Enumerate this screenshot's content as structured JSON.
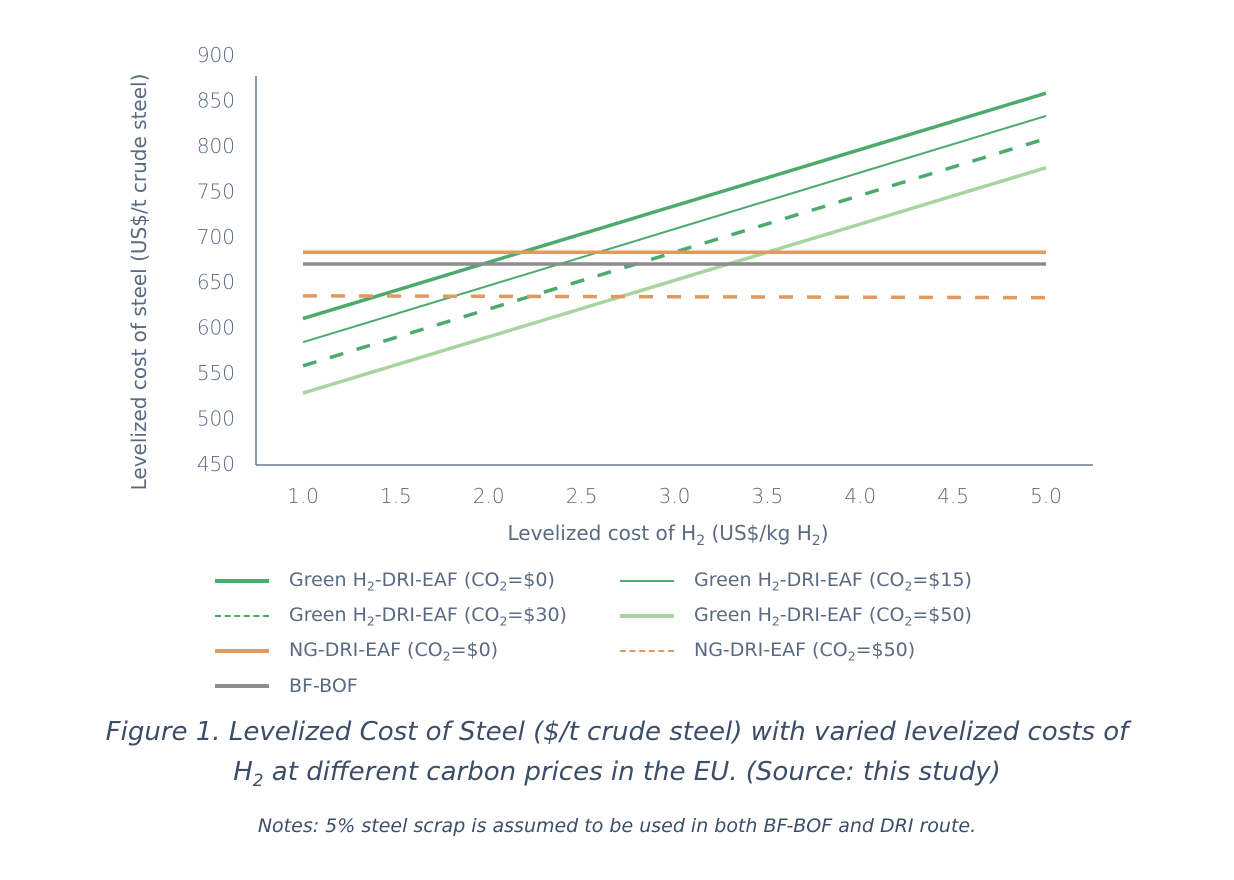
{
  "chart_data": {
    "type": "line",
    "title": "",
    "xlabel": "Levelized cost of H₂ (US$/kg H₂)",
    "ylabel": "Levelized cost of steel (US$/t crude steel)",
    "xlim": [
      0.75,
      5.25
    ],
    "ylim": [
      450,
      900
    ],
    "xticks": [
      "1.0",
      "1.5",
      "2.0",
      "2.5",
      "3.0",
      "3.5",
      "4.0",
      "4.5",
      "5.0"
    ],
    "yticks": [
      "450",
      "500",
      "550",
      "600",
      "650",
      "700",
      "750",
      "800",
      "850",
      "900"
    ],
    "grid": false,
    "legend_position": "bottom",
    "series": [
      {
        "name": "Green H₂-DRI-EAF (CO₂=$0)",
        "color": "#4caa6e",
        "style": "solid",
        "weight": "thick",
        "x": [
          1.0,
          5.0
        ],
        "y": [
          610,
          858
        ]
      },
      {
        "name": "Green H₂-DRI-EAF (CO₂=$15)",
        "color": "#4caa6e",
        "style": "solid",
        "weight": "thin",
        "x": [
          1.0,
          5.0
        ],
        "y": [
          584,
          833
        ]
      },
      {
        "name": "Green H₂-DRI-EAF (CO₂=$30)",
        "color": "#4caa6e",
        "style": "dashed",
        "weight": "thick",
        "x": [
          1.0,
          5.0
        ],
        "y": [
          558,
          808
        ]
      },
      {
        "name": "Green H₂-DRI-EAF (CO₂=$50)",
        "color": "#a9d3a0",
        "style": "solid",
        "weight": "thick",
        "x": [
          1.0,
          5.0
        ],
        "y": [
          528,
          776
        ]
      },
      {
        "name": "NG-DRI-EAF (CO₂=$0)",
        "color": "#e0995e",
        "style": "solid",
        "weight": "thick",
        "x": [
          1.0,
          5.0
        ],
        "y": [
          683,
          683
        ]
      },
      {
        "name": "NG-DRI-EAF (CO₂=$50)",
        "color": "#e0995e",
        "style": "dashed",
        "weight": "thick",
        "x": [
          1.0,
          5.0
        ],
        "y": [
          635,
          633
        ]
      },
      {
        "name": "BF-BOF",
        "color": "#8c8c8c",
        "style": "solid",
        "weight": "thick",
        "x": [
          1.0,
          5.0
        ],
        "y": [
          670,
          670
        ]
      }
    ]
  },
  "legend": [
    {
      "prefix": "Green H",
      "sub1": "2",
      "mid": "-DRI-EAF (CO",
      "sub2": "2",
      "suffix": "=$0)",
      "series": 0
    },
    {
      "prefix": "Green H",
      "sub1": "2",
      "mid": "-DRI-EAF (CO",
      "sub2": "2",
      "suffix": "=$15)",
      "series": 1
    },
    {
      "prefix": "Green H",
      "sub1": "2",
      "mid": "-DRI-EAF (CO",
      "sub2": "2",
      "suffix": "=$30)",
      "series": 2
    },
    {
      "prefix": "Green H",
      "sub1": "2",
      "mid": "-DRI-EAF (CO",
      "sub2": "2",
      "suffix": "=$50)",
      "series": 3
    },
    {
      "prefix": "NG-DRI-EAF (CO",
      "sub1": "2",
      "mid": "=$0)",
      "sub2": "",
      "suffix": "",
      "series": 4
    },
    {
      "prefix": "NG-DRI-EAF (CO",
      "sub1": "2",
      "mid": "=$50)",
      "sub2": "",
      "suffix": "",
      "series": 5
    },
    {
      "prefix": "BF-BOF",
      "sub1": "",
      "mid": "",
      "sub2": "",
      "suffix": "",
      "series": 6
    }
  ],
  "caption": {
    "line1": "Figure 1. Levelized Cost of Steel ($/t crude steel) with varied levelized costs of",
    "line2_prefix": "H",
    "line2_sub": "2",
    "line2_rest": " at different carbon prices in the EU. (Source: this study)",
    "notes": "Notes: 5% steel scrap is assumed to be used in both BF-BOF and DRI route."
  }
}
